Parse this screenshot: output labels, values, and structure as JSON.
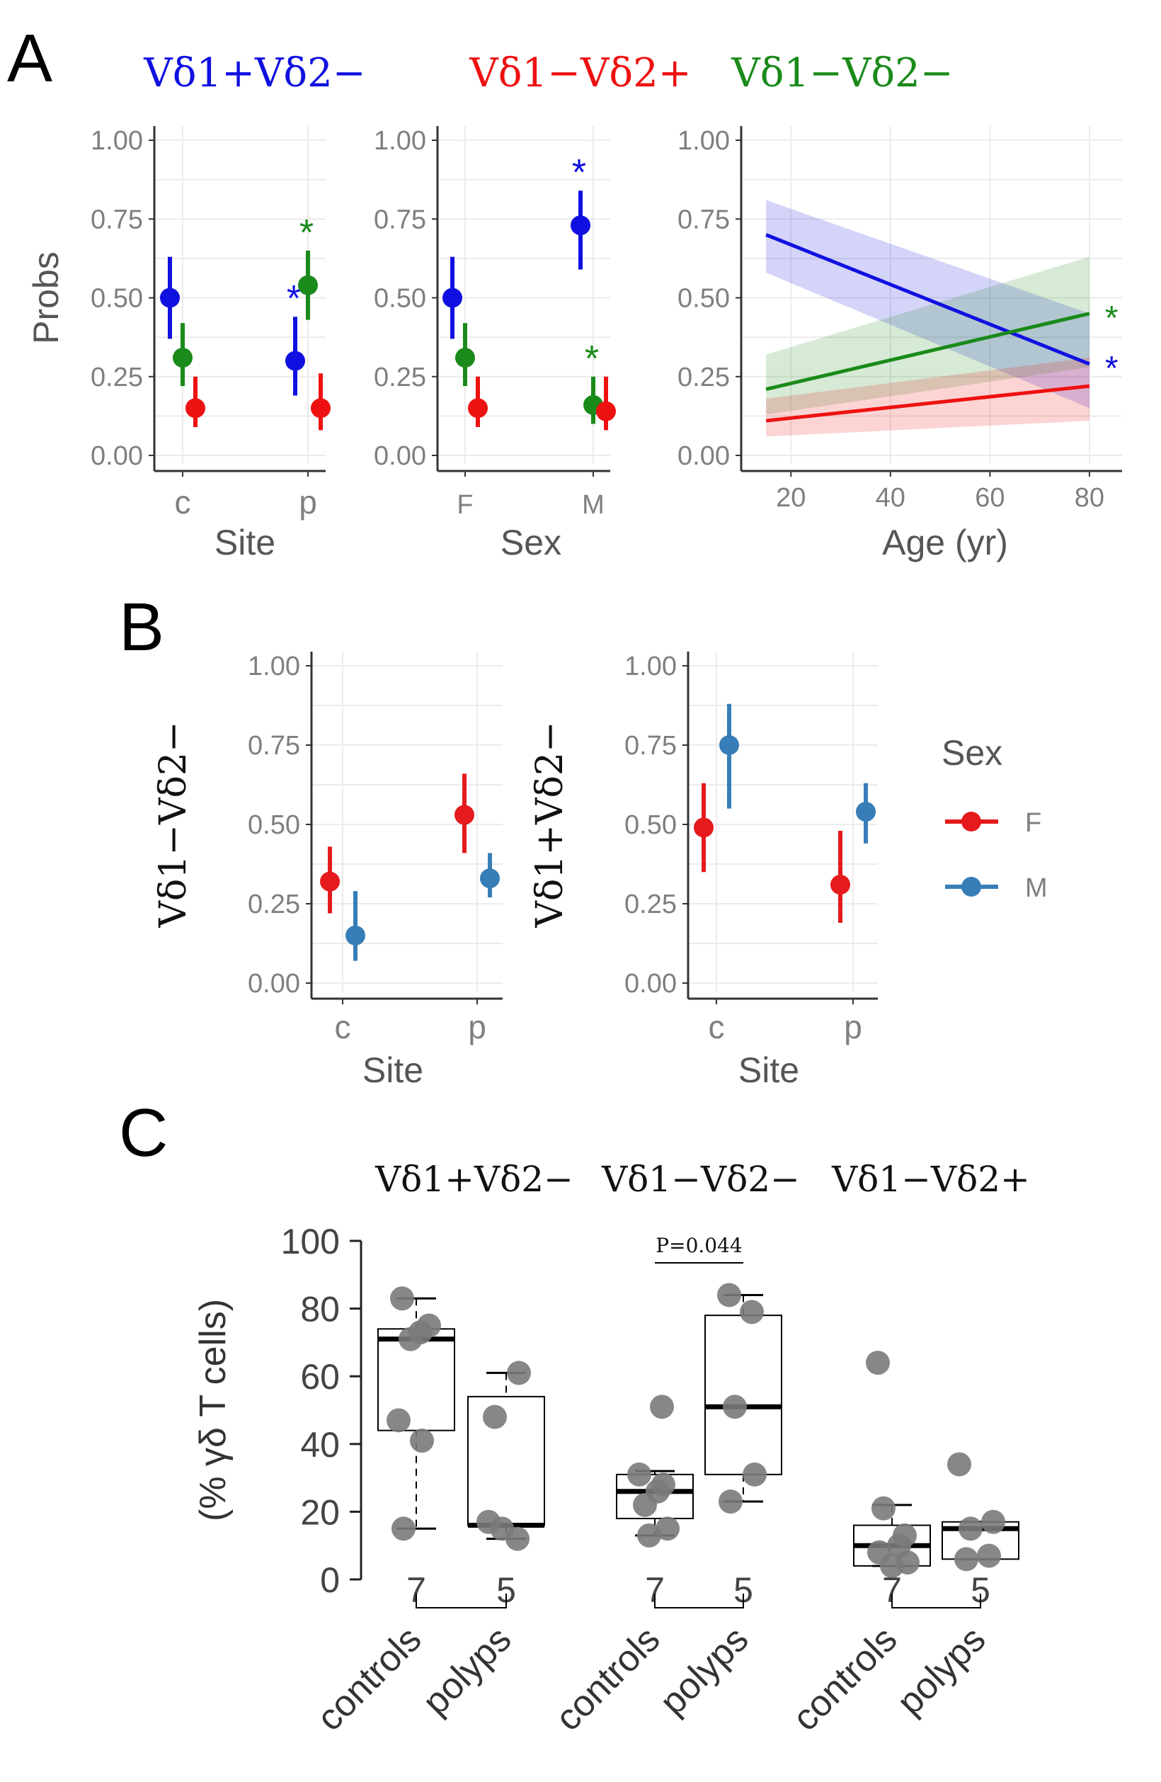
{
  "colors": {
    "vd1p_vd2n": "#1010e0",
    "vd1n_vd2p": "#ee1111",
    "vd1n_vd2n": "#1a8a1a",
    "sex_F": "#e41a1c",
    "sex_M": "#377eb8",
    "points_C": "#7a7a7a"
  },
  "panels": {
    "A": {
      "letter": "A",
      "titles": [
        "Vδ1+Vδ2−",
        "Vδ1−Vδ2+",
        "Vδ1−Vδ2−"
      ],
      "ylabel": "Probs",
      "ytick_labels": [
        "0.00",
        "0.25",
        "0.50",
        "0.75",
        "1.00"
      ]
    },
    "B": {
      "letter": "B",
      "legend_title": "Sex",
      "legend_items": [
        "F",
        "M"
      ]
    },
    "C": {
      "letter": "C",
      "titles": [
        "Vδ1+Vδ2−",
        "Vδ1−Vδ2−",
        "Vδ1−Vδ2+"
      ],
      "ylabel": "(% γδ T cells)",
      "pvalue": "P=0.044"
    }
  },
  "chart_data": [
    {
      "id": "A_site",
      "type": "scatter",
      "xlabel": "Site",
      "ylabel": "Probs",
      "categories": [
        "c",
        "p"
      ],
      "ylim": [
        0,
        1
      ],
      "yticks": [
        0,
        0.25,
        0.5,
        0.75,
        1.0
      ],
      "series": [
        {
          "name": "Vδ1+Vδ2−",
          "values": [
            0.5,
            0.3
          ],
          "lower": [
            0.37,
            0.19
          ],
          "upper": [
            0.63,
            0.44
          ],
          "significant": [
            "",
            "*"
          ]
        },
        {
          "name": "Vδ1−Vδ2−",
          "values": [
            0.31,
            0.54
          ],
          "lower": [
            0.22,
            0.43
          ],
          "upper": [
            0.42,
            0.65
          ],
          "significant": [
            "",
            "*"
          ]
        },
        {
          "name": "Vδ1−Vδ2+",
          "values": [
            0.15,
            0.15
          ],
          "lower": [
            0.09,
            0.08
          ],
          "upper": [
            0.25,
            0.26
          ],
          "significant": [
            "",
            ""
          ]
        }
      ]
    },
    {
      "id": "A_sex",
      "type": "scatter",
      "xlabel": "Sex",
      "ylabel": "",
      "categories": [
        "F",
        "M"
      ],
      "ylim": [
        0,
        1
      ],
      "yticks": [
        0,
        0.25,
        0.5,
        0.75,
        1.0
      ],
      "series": [
        {
          "name": "Vδ1+Vδ2−",
          "values": [
            0.5,
            0.73
          ],
          "lower": [
            0.37,
            0.59
          ],
          "upper": [
            0.63,
            0.84
          ],
          "significant": [
            "",
            "*"
          ]
        },
        {
          "name": "Vδ1−Vδ2−",
          "values": [
            0.31,
            0.16
          ],
          "lower": [
            0.22,
            0.1
          ],
          "upper": [
            0.42,
            0.25
          ],
          "significant": [
            "",
            "*"
          ]
        },
        {
          "name": "Vδ1−Vδ2+",
          "values": [
            0.15,
            0.14
          ],
          "lower": [
            0.09,
            0.08
          ],
          "upper": [
            0.25,
            0.25
          ],
          "significant": [
            "",
            ""
          ]
        }
      ]
    },
    {
      "id": "A_age",
      "type": "line",
      "xlabel": "Age (yr)",
      "ylabel": "",
      "x": [
        15,
        80
      ],
      "xticks": [
        20,
        40,
        60,
        80
      ],
      "ylim": [
        0,
        1
      ],
      "yticks": [
        0,
        0.25,
        0.5,
        0.75,
        1.0
      ],
      "series": [
        {
          "name": "Vδ1+Vδ2−",
          "values": [
            0.7,
            0.29
          ],
          "lower": [
            0.58,
            0.15
          ],
          "upper": [
            0.81,
            0.45
          ],
          "significant": "*"
        },
        {
          "name": "Vδ1−Vδ2−",
          "values": [
            0.21,
            0.45
          ],
          "lower": [
            0.13,
            0.28
          ],
          "upper": [
            0.32,
            0.63
          ],
          "significant": "*"
        },
        {
          "name": "Vδ1−Vδ2+",
          "values": [
            0.11,
            0.22
          ],
          "lower": [
            0.06,
            0.11
          ],
          "upper": [
            0.18,
            0.31
          ],
          "significant": ""
        }
      ]
    },
    {
      "id": "B_vd1n_vd2n",
      "type": "scatter",
      "xlabel": "Site",
      "ylabel": "Vδ1−Vδ2−",
      "categories": [
        "c",
        "p"
      ],
      "ylim": [
        0,
        1
      ],
      "yticks": [
        0,
        0.25,
        0.5,
        0.75,
        1.0
      ],
      "series": [
        {
          "name": "F",
          "values": [
            0.32,
            0.53
          ],
          "lower": [
            0.22,
            0.41
          ],
          "upper": [
            0.43,
            0.66
          ]
        },
        {
          "name": "M",
          "values": [
            0.15,
            0.33
          ],
          "lower": [
            0.07,
            0.27
          ],
          "upper": [
            0.29,
            0.41
          ]
        }
      ]
    },
    {
      "id": "B_vd1p_vd2n",
      "type": "scatter",
      "xlabel": "Site",
      "ylabel": "Vδ1+Vδ2−",
      "categories": [
        "c",
        "p"
      ],
      "ylim": [
        0,
        1
      ],
      "yticks": [
        0,
        0.25,
        0.5,
        0.75,
        1.0
      ],
      "series": [
        {
          "name": "F",
          "values": [
            0.49,
            0.31
          ],
          "lower": [
            0.35,
            0.19
          ],
          "upper": [
            0.63,
            0.48
          ]
        },
        {
          "name": "M",
          "values": [
            0.75,
            0.54
          ],
          "lower": [
            0.55,
            0.44
          ],
          "upper": [
            0.88,
            0.63
          ]
        }
      ]
    },
    {
      "id": "C_boxplots",
      "type": "box",
      "ylabel": "(% γδ T cells)",
      "ylim": [
        0,
        100
      ],
      "yticks": [
        0,
        20,
        40,
        60,
        80,
        100
      ],
      "x_labels": [
        "controls",
        "polyps"
      ],
      "groups": [
        {
          "title": "Vδ1+Vδ2−",
          "boxes": [
            {
              "label": "controls",
              "n": "7",
              "whisker_low": 15,
              "q1": 44,
              "median": 71,
              "q3": 74,
              "whisker_high": 83,
              "points": [
                83,
                75,
                73,
                71,
                47,
                41,
                15
              ]
            },
            {
              "label": "polyps",
              "n": "5",
              "whisker_low": 12,
              "q1": 16,
              "median": 16,
              "q3": 54,
              "whisker_high": 61,
              "points": [
                61,
                48,
                17,
                15,
                12
              ]
            }
          ]
        },
        {
          "title": "Vδ1−Vδ2−",
          "pvalue": "P=0.044",
          "boxes": [
            {
              "label": "controls",
              "n": "7",
              "whisker_low": 13,
              "q1": 18,
              "median": 26,
              "q3": 31,
              "whisker_high": 32,
              "points": [
                51,
                31,
                28,
                26,
                22,
                15,
                13
              ]
            },
            {
              "label": "polyps",
              "n": "5",
              "whisker_low": 23,
              "q1": 31,
              "median": 51,
              "q3": 78,
              "whisker_high": 84,
              "points": [
                84,
                79,
                51,
                31,
                23
              ]
            }
          ]
        },
        {
          "title": "Vδ1−Vδ2+",
          "boxes": [
            {
              "label": "controls",
              "n": "7",
              "whisker_low": 4,
              "q1": 4,
              "median": 10,
              "q3": 16,
              "whisker_high": 22,
              "points": [
                64,
                21,
                13,
                10,
                8,
                5,
                4
              ]
            },
            {
              "label": "polyps",
              "n": "5",
              "whisker_low": 6,
              "q1": 6,
              "median": 15,
              "q3": 17,
              "whisker_high": 17,
              "points": [
                34,
                17,
                15,
                7,
                6
              ]
            }
          ]
        }
      ]
    }
  ]
}
